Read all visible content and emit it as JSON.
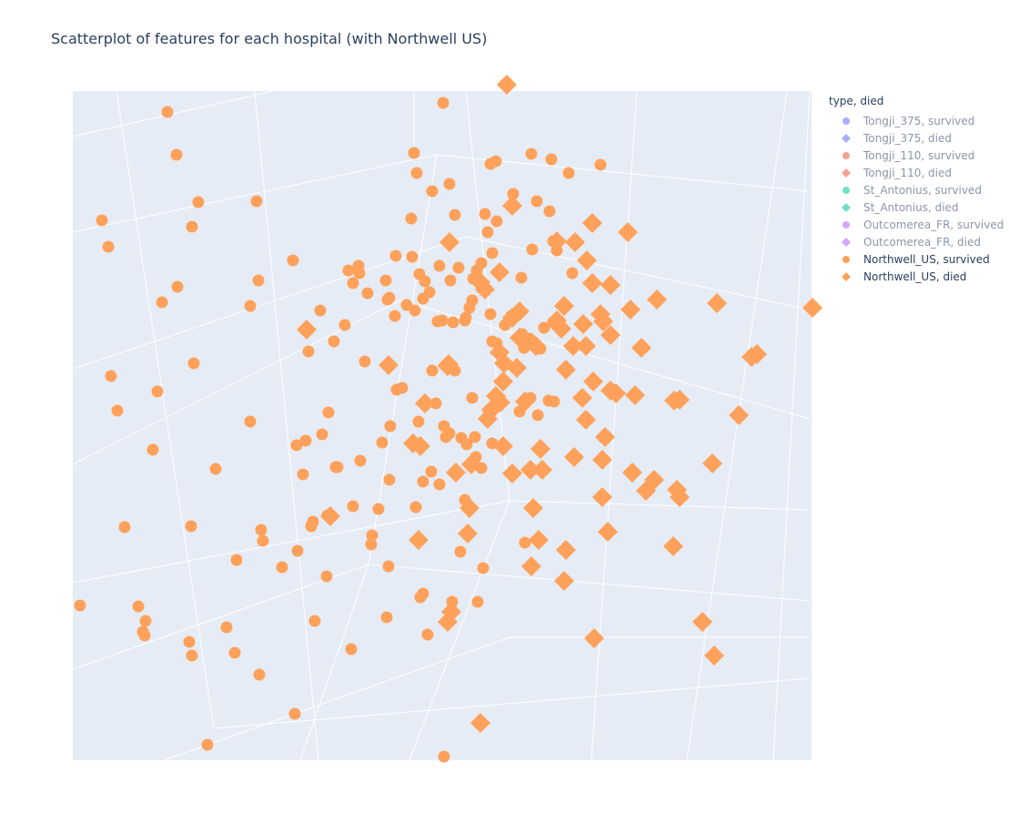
{
  "chart_data": {
    "type": "scatter",
    "title": "Scatterplot of features for each hospital (with Northwell US)",
    "legend": {
      "title": "type, died",
      "placement": "right",
      "entries": [
        {
          "label": "Tongji_375, survived",
          "color": "#636efa",
          "symbol": "circle",
          "visible": false
        },
        {
          "label": "Tongji_375, died",
          "color": "#636efa",
          "symbol": "diamond",
          "visible": false
        },
        {
          "label": "Tongji_110, survived",
          "color": "#EF553B",
          "symbol": "circle",
          "visible": false
        },
        {
          "label": "Tongji_110, died",
          "color": "#EF553B",
          "symbol": "diamond",
          "visible": false
        },
        {
          "label": "St_Antonius, survived",
          "color": "#00cc96",
          "symbol": "circle",
          "visible": false
        },
        {
          "label": "St_Antonius, died",
          "color": "#00cc96",
          "symbol": "diamond",
          "visible": false
        },
        {
          "label": "Outcomerea_FR, survived",
          "color": "#ab63fa",
          "symbol": "circle",
          "visible": false
        },
        {
          "label": "Outcomerea_FR, died",
          "color": "#ab63fa",
          "symbol": "diamond",
          "visible": false
        },
        {
          "label": "Northwell_US, survived",
          "color": "#FFA15A",
          "symbol": "circle",
          "visible": true
        },
        {
          "label": "Northwell_US, died",
          "color": "#FFA15A",
          "symbol": "diamond",
          "visible": true
        }
      ]
    },
    "grid": true,
    "series": [
      {
        "name": "Northwell_US, survived",
        "color": "#FFA15A",
        "symbol": "circle",
        "x": [
          487,
          184,
          194,
          455,
          458,
          475,
          494,
          545,
          539,
          584,
          606,
          625,
          660,
          112,
          119,
          218,
          211,
          282,
          452,
          500,
          533,
          546,
          564,
          590,
          604,
          536,
          541,
          585,
          608,
          612,
          322,
          284,
          178,
          195,
          275,
          383,
          394,
          395,
          388,
          404,
          424,
          435,
          453,
          461,
          467,
          483,
          495,
          504,
          520,
          524,
          529,
          573,
          629,
          352,
          379,
          367,
          339,
          401,
          434,
          426,
          428,
          447,
          456,
          465,
          472,
          481,
          486,
          498,
          511,
          519,
          512,
          516,
          539,
          555,
          562,
          574,
          576,
          582,
          594,
          598,
          608,
          541,
          546,
          122,
          213,
          173,
          129,
          275,
          168,
          237,
          333,
          326,
          336,
          354,
          361,
          371,
          396,
          420,
          429,
          436,
          442,
          460,
          475,
          479,
          488,
          494,
          490,
          500,
          507,
          513,
          522,
          523,
          541,
          529,
          571,
          591,
          603,
          609,
          583,
          537,
          519,
          483,
          465,
          474,
          428,
          457,
          388,
          416,
          369,
          344,
          342,
          360,
          287,
          289,
          327,
          260,
          310,
          359,
          409,
          408,
          427,
          462,
          465,
          425,
          497,
          525,
          511,
          506,
          531,
          577,
          137,
          210,
          88,
          152,
          160,
          159,
          157,
          208,
          211,
          249,
          258,
          285,
          346,
          386,
          470,
          324,
          228,
          488
        ],
        "y": [
          113,
          123,
          170,
          168,
          190,
          210,
          202,
          177,
          180,
          169,
          175,
          190,
          181,
          242,
          271,
          222,
          249,
          221,
          240,
          236,
          235,
          243,
          213,
          221,
          232,
          255,
          278,
          274,
          265,
          275,
          286,
          308,
          332,
          315,
          336,
          297,
          292,
          300,
          311,
          322,
          308,
          281,
          282,
          301,
          309,
          292,
          308,
          294,
          306,
          297,
          289,
          305,
          300,
          341,
          357,
          375,
          386,
          397,
          347,
          329,
          327,
          335,
          341,
          328,
          321,
          353,
          352,
          354,
          352,
          330,
          349,
          338,
          345,
          357,
          347,
          367,
          382,
          372,
          383,
          360,
          354,
          375,
          377,
          413,
          399,
          430,
          451,
          463,
          494,
          515,
          521,
          489,
          484,
          477,
          453,
          513,
          506,
          486,
          468,
          428,
          426,
          463,
          407,
          443,
          468,
          476,
          480,
          407,
          481,
          488,
          480,
          502,
          487,
          514,
          452,
          456,
          440,
          441,
          437,
          456,
          437,
          532,
          529,
          518,
          527,
          557,
          556,
          559,
          513,
          573,
          578,
          566,
          582,
          594,
          605,
          615,
          623,
          633,
          588,
          598,
          622,
          656,
          652,
          678,
          661,
          661,
          549,
          606,
          624,
          596,
          579,
          578,
          665,
          666,
          682,
          698,
          694,
          705,
          720,
          689,
          717,
          741,
          682,
          713,
          697,
          784,
          818,
          831
        ]
      },
      {
        "name": "Northwell_US, died",
        "color": "#FFA15A",
        "symbol": "diamond",
        "x": [
          557,
          563,
          494,
          651,
          690,
          612,
          632,
          645,
          549,
          528,
          533,
          651,
          671,
          620,
          571,
          660,
          693,
          722,
          788,
          893,
          337,
          427,
          492,
          612,
          617,
          641,
          630,
          571,
          563,
          589,
          663,
          671,
          705,
          644,
          622,
          549,
          554,
          568,
          553,
          577,
          545,
          540,
          536,
          550,
          640,
          652,
          671,
          677,
          698,
          741,
          747,
          826,
          832,
          812,
          467,
          493,
          454,
          462,
          553,
          594,
          501,
          518,
          563,
          583,
          596,
          631,
          665,
          662,
          695,
          710,
          719,
          744,
          747,
          783,
          644,
          662,
          586,
          516,
          363,
          460,
          514,
          592,
          622,
          584,
          620,
          668,
          740,
          772,
          785,
          653,
          496,
          492,
          528
        ],
        "y": [
          93,
          226,
          266,
          245,
          255,
          265,
          266,
          286,
          299,
          310,
          318,
          311,
          313,
          336,
          342,
          345,
          340,
          329,
          333,
          338,
          362,
          401,
          402,
          352,
          361,
          356,
          380,
          371,
          349,
          380,
          353,
          368,
          382,
          380,
          406,
          387,
          399,
          404,
          419,
          441,
          435,
          450,
          460,
          442,
          437,
          419,
          429,
          432,
          434,
          440,
          439,
          392,
          389,
          456,
          443,
          400,
          487,
          490,
          490,
          493,
          519,
          510,
          520,
          516,
          516,
          502,
          480,
          505,
          519,
          539,
          527,
          538,
          546,
          509,
          461,
          546,
          558,
          558,
          567,
          593,
          586,
          593,
          604,
          622,
          638,
          584,
          600,
          683,
          720,
          701,
          672,
          683,
          794
        ]
      }
    ]
  }
}
